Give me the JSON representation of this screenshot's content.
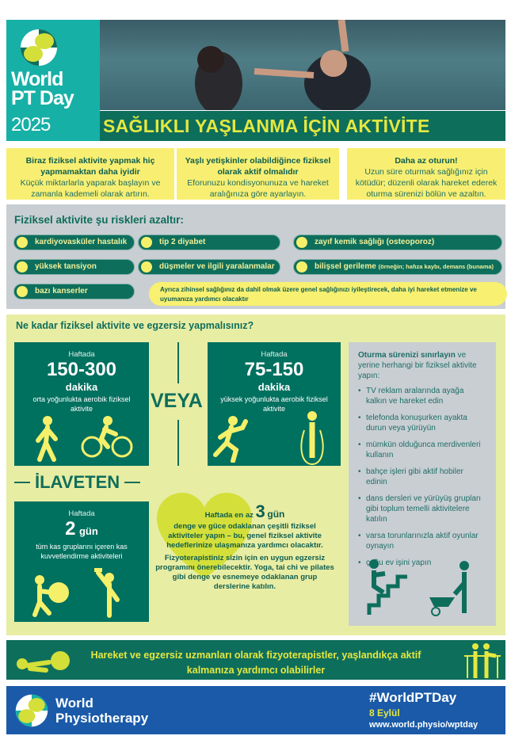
{
  "header": {
    "logo_line1": "World",
    "logo_line2": "PT Day",
    "logo_year": "2025",
    "title": "SAĞLIKLI YAŞLANMA İÇİN AKTİVİTE"
  },
  "tips": [
    {
      "title": "Biraz fiziksel aktivite yapmak hiç yapmamaktan daha iyidir",
      "text": "Küçük miktarlarla yaparak başlayın ve zamanla kademeli olarak artırın."
    },
    {
      "title": "Yaşlı yetişkinler olabildiğince fiziksel olarak aktif olmalıdır",
      "text": "Eforunuzu kondisyonunuza ve hareket aralığınıza göre ayarlayın."
    },
    {
      "title": "Daha az oturun!",
      "text": "Uzun süre oturmak sağlığınız için kötüdür; düzenli olarak hareket ederek oturma sürenizi bölün ve azaltın."
    }
  ],
  "risks": {
    "heading": "Fiziksel aktivite şu riskleri azaltır:",
    "items": [
      "kardiyovasküler hastalık",
      "tip 2 diyabet",
      "zayıf kemik sağlığı (osteoporoz)",
      "yüksek tansiyon",
      "düşmeler ve ilgili yaralanmalar",
      "bilişsel gerileme",
      "bazı kanserler"
    ],
    "item6_note": "(örneğin; hafıza kaybı, demans (bunama)",
    "note": "Ayrıca zihinsel sağlığınız da dahil olmak üzere genel sağlığınızı iyileştirecek, daha iyi hareket etmenize ve uyumanıza yardımcı olacaktır"
  },
  "howmuch": {
    "question": "Ne kadar fiziksel aktivite ve egzersiz yapmalısınız?",
    "moderate": {
      "label": "Haftada",
      "amount": "150-300",
      "unit": "dakika",
      "desc": "orta yoğunlukta aerobik fiziksel aktivite"
    },
    "or": "VEYA",
    "vigorous": {
      "label": "Haftada",
      "amount": "75-150",
      "unit": "dakika",
      "desc": "yüksek yoğunlukta aerobik fiziksel aktivite"
    },
    "additionally": "İLAVETEN",
    "strength": {
      "label": "Haftada",
      "amount": "2",
      "unit": "gün",
      "desc": "tüm kas gruplarını içeren kas kuvvetlendirme aktiviteleri"
    },
    "balance": {
      "prefix": "Haftada en az",
      "amount": "3",
      "unit": "gün",
      "desc": "denge ve güce odaklanan çeşitli fiziksel aktiviteler yapın – bu, genel fiziksel aktivite hedeflerinize ulaşmanıza yardımcı olacaktır.",
      "extra": "Fizyoterapistiniz sizin için en uygun egzersiz programını önerebilecektir. Yoga, tai chi ve pilates gibi denge ve esnemeye odaklanan grup derslerine katılın."
    },
    "sitting": {
      "lead_bold": "Oturma sürenizi sınırlayın",
      "lead": " ve yerine herhangi bir fiziksel aktivite yapın:",
      "items": [
        "TV reklam aralarında ayağa kalkın ve hareket edin",
        "telefonda konuşurken ayakta durun veya yürüyün",
        "mümkün olduğunca merdivenleri kullanın",
        "bahçe işleri gibi aktif hobiler edinin",
        "dans dersleri ve yürüyüş grupları gibi toplum temelli aktivitelere katılın",
        "varsa torunlarınızla aktif oyunlar oynayın",
        "çoğu ev işini yapın"
      ]
    }
  },
  "banner": {
    "text": "Hareket ve egzersiz uzmanları olarak fizyoterapistler, yaşlandıkça aktif kalmanıza yardımcı olabilirler"
  },
  "footer": {
    "org_line1": "World",
    "org_line2": "Physiotherapy",
    "hashtag": "#WorldPTDay",
    "date": "8 Eylül",
    "url": "www.world.physio/wptday"
  },
  "colors": {
    "teal": "#16b0a6",
    "dark_green": "#0e6e5c",
    "yellow": "#f8ef72",
    "lime": "#e4e840",
    "blue": "#1a5aa8",
    "gray": "#c9ced3",
    "pale_green": "#e8eda4"
  }
}
